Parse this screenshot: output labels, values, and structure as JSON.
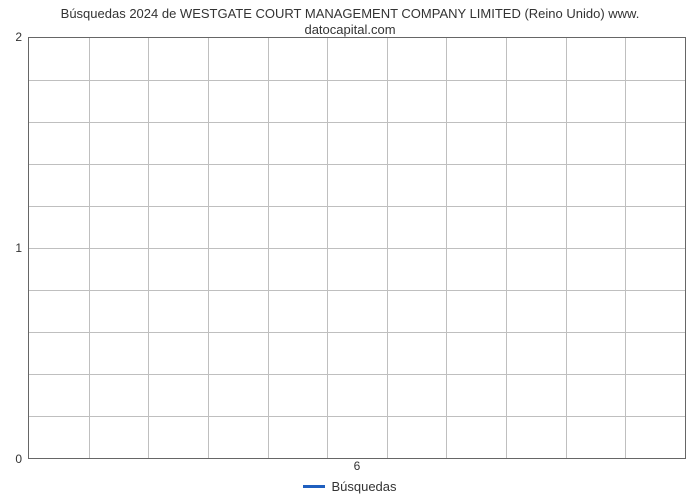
{
  "chart": {
    "type": "line",
    "title_line1": "Búsquedas 2024 de WESTGATE COURT MANAGEMENT COMPANY LIMITED (Reino Unido) www.",
    "title_line2": "datocapital.com",
    "title_fontsize": 13,
    "title_color": "#333333",
    "y": {
      "lim": [
        0,
        2
      ],
      "major_ticks": [
        0,
        1,
        2
      ],
      "minor_per_major": 5,
      "label_fontsize": 12
    },
    "x": {
      "tick_labels": [
        "6"
      ],
      "tick_positions_pct": [
        1.5
      ],
      "columns": 11,
      "label_fontsize": 12
    },
    "series": [
      {
        "name": "Búsquedas",
        "color": "#1f5fbf",
        "values": []
      }
    ],
    "legend": {
      "label": "Búsquedas",
      "swatch_color": "#1f5fbf",
      "position": "bottom-center"
    },
    "grid_color": "#bfbfbf",
    "border_color": "#666666",
    "background_color": "#ffffff"
  }
}
